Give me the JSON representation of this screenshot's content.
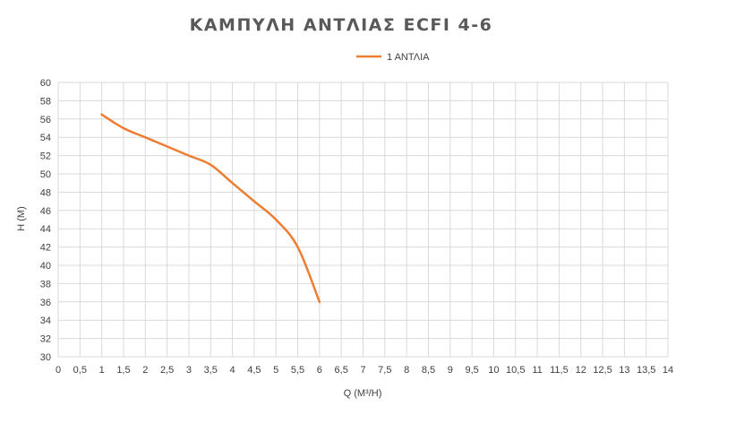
{
  "chart_data": {
    "type": "line",
    "title": "ΚΑΜΠΥΛΗ ΑΝΤΛΙΑΣ ECFI 4-6",
    "xlabel": "Q (M³/H)",
    "ylabel": "H (M)",
    "xlim": [
      0,
      14
    ],
    "ylim": [
      30,
      60
    ],
    "x_ticks": [
      "0",
      "0,5",
      "1",
      "1,5",
      "2",
      "2,5",
      "3",
      "3,5",
      "4",
      "4,5",
      "5",
      "5,5",
      "6",
      "6,5",
      "7",
      "7,5",
      "8",
      "8,5",
      "9",
      "9,5",
      "10",
      "10,5",
      "11",
      "11,5",
      "12",
      "12,5",
      "13",
      "13,5",
      "14"
    ],
    "y_ticks": [
      "30",
      "32",
      "34",
      "36",
      "38",
      "40",
      "42",
      "44",
      "46",
      "48",
      "50",
      "52",
      "54",
      "56",
      "58",
      "60"
    ],
    "grid": true,
    "legend_position": "top",
    "series": [
      {
        "name": "1 ΑΝΤΛΙΑ",
        "color": "#ED7D31",
        "x": [
          1,
          1.5,
          2,
          2.5,
          3,
          3.5,
          4,
          4.5,
          5,
          5.5,
          6
        ],
        "y": [
          56.5,
          55,
          54,
          53,
          52,
          51,
          49,
          47,
          45,
          42,
          36
        ]
      }
    ]
  }
}
